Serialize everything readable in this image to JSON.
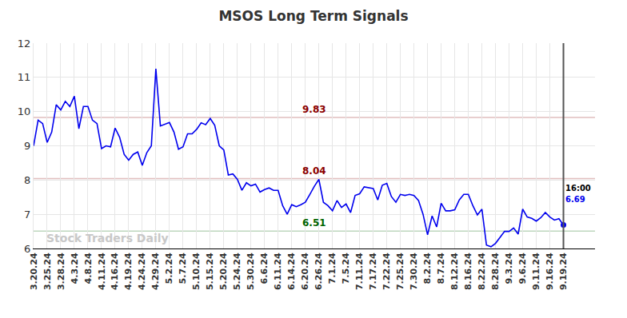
{
  "chart_data": {
    "type": "line",
    "title": "MSOS Long Term Signals",
    "watermark": "Stock Traders Daily",
    "last_label": "16:00",
    "color": "#0000ee",
    "grid": true,
    "ylim": [
      6,
      12
    ],
    "yticks": [
      6,
      7,
      8,
      9,
      10,
      11,
      12
    ],
    "reference_lines": [
      {
        "value": 9.83,
        "color": "#8b0000"
      },
      {
        "value": 8.04,
        "color": "#8b0000"
      },
      {
        "value": 6.51,
        "color": "#006400"
      }
    ],
    "categories": [
      "3.20.24",
      null,
      null,
      "3.25.24",
      null,
      null,
      "3.28.24",
      null,
      null,
      "4.3.24",
      null,
      null,
      "4.8.24",
      null,
      null,
      "4.11.24",
      null,
      null,
      "4.16.24",
      null,
      null,
      "4.19.24",
      null,
      null,
      "4.24.24",
      null,
      null,
      "4.29.24",
      null,
      null,
      "5.2.24",
      null,
      null,
      "5.7.24",
      null,
      null,
      "5.10.24",
      null,
      null,
      "5.15.24",
      null,
      null,
      "5.20.24",
      null,
      null,
      "5.24.24",
      null,
      null,
      "5.30.24",
      null,
      null,
      "6.6.24",
      null,
      null,
      "6.11.24",
      null,
      null,
      "6.14.24",
      null,
      null,
      "6.20.24",
      null,
      null,
      "6.26.24",
      null,
      null,
      "7.1.24",
      null,
      null,
      "7.5.24",
      null,
      null,
      "7.11.24",
      null,
      null,
      "7.17.24",
      null,
      null,
      "7.22.24",
      null,
      null,
      "7.25.24",
      null,
      null,
      "7.30.24",
      null,
      null,
      "8.2.24",
      null,
      null,
      "8.7.24",
      null,
      null,
      "8.12.24",
      null,
      null,
      "8.16.24",
      null,
      null,
      "8.22.24",
      null,
      null,
      "8.28.24",
      null,
      null,
      "9.3.24",
      null,
      null,
      "9.6.24",
      null,
      null,
      "9.11.24",
      null,
      null,
      "9.16.24",
      null,
      null,
      "9.19.24"
    ],
    "values": [
      9.0,
      9.75,
      9.65,
      9.1,
      9.4,
      10.2,
      10.05,
      10.3,
      10.15,
      10.45,
      9.5,
      10.15,
      10.15,
      9.75,
      9.65,
      8.92,
      9.0,
      8.97,
      9.52,
      9.25,
      8.75,
      8.58,
      8.75,
      8.82,
      8.43,
      8.8,
      9.0,
      11.25,
      9.58,
      9.63,
      9.68,
      9.4,
      8.9,
      8.97,
      9.35,
      9.35,
      9.48,
      9.67,
      9.62,
      9.8,
      9.6,
      9.0,
      8.88,
      8.15,
      8.18,
      8.02,
      7.7,
      7.92,
      7.83,
      7.88,
      7.65,
      7.72,
      7.77,
      7.7,
      7.7,
      7.25,
      7.0,
      7.28,
      7.22,
      7.28,
      7.35,
      7.58,
      7.82,
      8.02,
      7.35,
      7.25,
      7.1,
      7.4,
      7.2,
      7.3,
      7.05,
      7.55,
      7.6,
      7.8,
      7.78,
      7.75,
      7.42,
      7.85,
      7.9,
      7.52,
      7.35,
      7.58,
      7.55,
      7.58,
      7.55,
      7.4,
      7.0,
      6.4,
      6.95,
      6.63,
      7.32,
      7.1,
      7.1,
      7.13,
      7.42,
      7.58,
      7.58,
      7.25,
      6.98,
      7.15,
      6.1,
      6.05,
      6.15,
      6.32,
      6.5,
      6.5,
      6.6,
      6.42,
      7.15,
      6.92,
      6.88,
      6.8,
      6.9,
      7.05,
      6.92,
      6.83,
      6.87,
      6.69
    ]
  }
}
